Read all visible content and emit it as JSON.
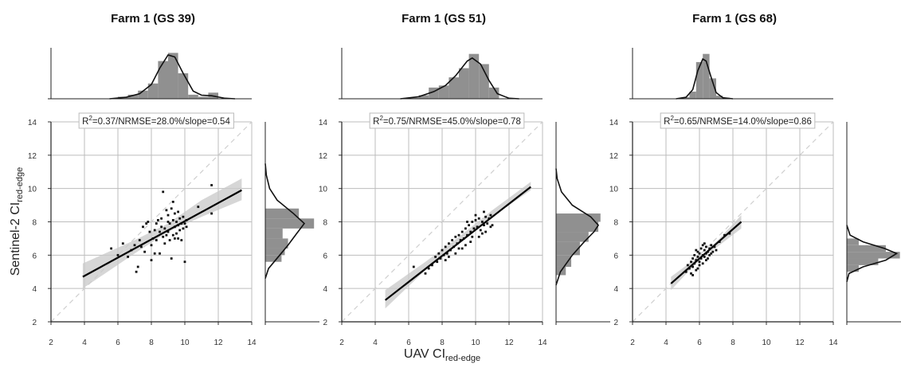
{
  "ylabel": {
    "main": "Sentinel-2 CI",
    "sub": "red-edge"
  },
  "xlabel": {
    "main": "UAV CI",
    "sub": "red-edge"
  },
  "chart_data": [
    {
      "type": "scatter",
      "title": "Farm 1 (GS 39)",
      "stat": {
        "r2_prefix": "R",
        "r2_sup": "2",
        "text": "=0.37/NRMSE=28.0%/slope=0.54"
      },
      "xlim": [
        2,
        14
      ],
      "ylim": [
        2,
        14
      ],
      "xticks": [
        2,
        4,
        6,
        8,
        10,
        12,
        14
      ],
      "yticks": [
        2,
        4,
        6,
        8,
        10,
        12,
        14
      ],
      "grid": true,
      "fit": {
        "x": [
          3.9,
          13.4
        ],
        "y": [
          4.7,
          9.9
        ]
      },
      "ci_band": {
        "x": [
          3.9,
          7,
          9,
          11,
          13.4
        ],
        "lower": [
          4.0,
          6.1,
          7.4,
          8.3,
          9.3
        ],
        "upper": [
          5.5,
          6.9,
          7.9,
          9.3,
          10.6
        ]
      },
      "points": [
        [
          5.6,
          6.4
        ],
        [
          6.0,
          6.0
        ],
        [
          6.3,
          6.7
        ],
        [
          6.6,
          5.9
        ],
        [
          6.8,
          6.3
        ],
        [
          7.0,
          6.6
        ],
        [
          7.1,
          5.0
        ],
        [
          7.2,
          5.3
        ],
        [
          7.3,
          6.9
        ],
        [
          7.4,
          6.5
        ],
        [
          7.5,
          7.7
        ],
        [
          7.6,
          6.2
        ],
        [
          7.7,
          7.9
        ],
        [
          7.8,
          8.0
        ],
        [
          7.9,
          7.4
        ],
        [
          8.0,
          5.7
        ],
        [
          8.0,
          6.6
        ],
        [
          8.1,
          7.0
        ],
        [
          8.2,
          6.1
        ],
        [
          8.2,
          7.5
        ],
        [
          8.3,
          7.9
        ],
        [
          8.4,
          8.1
        ],
        [
          8.5,
          6.1
        ],
        [
          8.5,
          7.4
        ],
        [
          8.6,
          7.7
        ],
        [
          8.6,
          8.2
        ],
        [
          8.7,
          9.8
        ],
        [
          8.8,
          6.7
        ],
        [
          8.8,
          7.6
        ],
        [
          8.9,
          8.7
        ],
        [
          9.0,
          7.4
        ],
        [
          9.0,
          8.4
        ],
        [
          9.1,
          6.9
        ],
        [
          9.1,
          7.9
        ],
        [
          9.2,
          8.8
        ],
        [
          9.2,
          5.8
        ],
        [
          9.3,
          7.2
        ],
        [
          9.3,
          8.1
        ],
        [
          9.4,
          7.7
        ],
        [
          9.4,
          8.5
        ],
        [
          9.5,
          7.3
        ],
        [
          9.5,
          8.0
        ],
        [
          9.6,
          7.8
        ],
        [
          9.6,
          8.6
        ],
        [
          9.7,
          7.5
        ],
        [
          9.7,
          8.2
        ],
        [
          9.8,
          6.9
        ],
        [
          9.8,
          7.9
        ],
        [
          9.9,
          7.6
        ],
        [
          9.9,
          8.3
        ],
        [
          10.0,
          5.6
        ],
        [
          10.0,
          7.9
        ],
        [
          10.1,
          7.7
        ],
        [
          10.1,
          8.1
        ],
        [
          9.4,
          7.0
        ],
        [
          8.3,
          6.9
        ],
        [
          9.0,
          8.0
        ],
        [
          8.7,
          7.1
        ],
        [
          10.8,
          8.9
        ],
        [
          11.6,
          8.5
        ],
        [
          11.6,
          10.2
        ],
        [
          9.3,
          9.2
        ],
        [
          8.9,
          7.2
        ],
        [
          9.6,
          7.0
        ]
      ],
      "hist_x": {
        "bins": [
          [
            6.0,
            6.6,
            0.04
          ],
          [
            6.6,
            7.2,
            0.08
          ],
          [
            7.2,
            7.8,
            0.16
          ],
          [
            7.8,
            8.4,
            0.3
          ],
          [
            8.4,
            9.0,
            0.74
          ],
          [
            9.0,
            9.6,
            0.9
          ],
          [
            9.6,
            10.2,
            0.5
          ],
          [
            10.2,
            10.8,
            0.08
          ],
          [
            10.8,
            11.4,
            0.04
          ],
          [
            11.4,
            12.0,
            0.12
          ]
        ],
        "kde": [
          [
            5.5,
            0.0
          ],
          [
            6.5,
            0.03
          ],
          [
            7.3,
            0.1
          ],
          [
            8.0,
            0.28
          ],
          [
            8.5,
            0.6
          ],
          [
            9.0,
            0.86
          ],
          [
            9.4,
            0.82
          ],
          [
            9.9,
            0.5
          ],
          [
            10.5,
            0.15
          ],
          [
            11.0,
            0.07
          ],
          [
            11.6,
            0.06
          ],
          [
            12.4,
            0.01
          ],
          [
            13.0,
            0.0
          ]
        ]
      },
      "hist_y": {
        "bins": [
          [
            5.6,
            6.0,
            0.3
          ],
          [
            6.0,
            6.4,
            0.36
          ],
          [
            6.4,
            7.0,
            0.42
          ],
          [
            7.0,
            7.6,
            0.32
          ],
          [
            7.6,
            8.2,
            0.9
          ],
          [
            8.2,
            8.8,
            0.62
          ]
        ],
        "kde": [
          [
            4.6,
            0.0
          ],
          [
            5.2,
            0.06
          ],
          [
            5.9,
            0.24
          ],
          [
            6.6,
            0.42
          ],
          [
            7.3,
            0.58
          ],
          [
            7.9,
            0.72
          ],
          [
            8.5,
            0.52
          ],
          [
            9.3,
            0.22
          ],
          [
            10.0,
            0.08
          ],
          [
            10.8,
            0.02
          ],
          [
            11.5,
            0.0
          ]
        ]
      }
    },
    {
      "type": "scatter",
      "title": "Farm 1 (GS 51)",
      "stat": {
        "r2_prefix": "R",
        "r2_sup": "2",
        "text": "=0.75/NRMSE=45.0%/slope=0.78"
      },
      "xlim": [
        2,
        14
      ],
      "ylim": [
        2,
        14
      ],
      "xticks": [
        2,
        4,
        6,
        8,
        10,
        12,
        14
      ],
      "yticks": [
        2,
        4,
        6,
        8,
        10,
        12,
        14
      ],
      "grid": true,
      "fit": {
        "x": [
          4.6,
          13.3
        ],
        "y": [
          3.3,
          10.1
        ]
      },
      "ci_band": {
        "x": [
          4.6,
          7,
          9,
          11,
          13.3
        ],
        "lower": [
          2.8,
          5.1,
          6.7,
          8.3,
          9.9
        ],
        "upper": [
          3.9,
          5.6,
          7.1,
          8.7,
          10.4
        ]
      },
      "points": [
        [
          6.3,
          5.3
        ],
        [
          7.0,
          4.9
        ],
        [
          7.2,
          5.2
        ],
        [
          7.4,
          5.4
        ],
        [
          7.6,
          5.9
        ],
        [
          7.7,
          5.6
        ],
        [
          7.8,
          6.1
        ],
        [
          7.9,
          5.8
        ],
        [
          8.0,
          6.3
        ],
        [
          8.1,
          6.0
        ],
        [
          8.2,
          5.7
        ],
        [
          8.2,
          6.5
        ],
        [
          8.3,
          6.1
        ],
        [
          8.4,
          6.7
        ],
        [
          8.5,
          6.3
        ],
        [
          8.6,
          6.9
        ],
        [
          8.7,
          6.5
        ],
        [
          8.8,
          7.1
        ],
        [
          8.9,
          6.7
        ],
        [
          9.0,
          6.4
        ],
        [
          9.0,
          7.2
        ],
        [
          9.1,
          6.9
        ],
        [
          9.2,
          7.4
        ],
        [
          9.3,
          7.0
        ],
        [
          9.4,
          7.6
        ],
        [
          9.4,
          6.6
        ],
        [
          9.5,
          7.2
        ],
        [
          9.6,
          7.8
        ],
        [
          9.7,
          7.4
        ],
        [
          9.8,
          8.0
        ],
        [
          9.8,
          7.1
        ],
        [
          9.9,
          7.6
        ],
        [
          10.0,
          8.1
        ],
        [
          10.1,
          7.7
        ],
        [
          10.2,
          8.2
        ],
        [
          10.3,
          7.5
        ],
        [
          10.4,
          8.0
        ],
        [
          10.5,
          7.8
        ],
        [
          10.6,
          8.3
        ],
        [
          10.7,
          7.9
        ],
        [
          10.8,
          8.2
        ],
        [
          10.9,
          7.7
        ],
        [
          10.6,
          7.4
        ],
        [
          10.2,
          7.1
        ],
        [
          9.7,
          6.8
        ],
        [
          9.2,
          6.4
        ],
        [
          8.8,
          6.1
        ],
        [
          8.4,
          5.9
        ],
        [
          10.0,
          8.4
        ],
        [
          10.5,
          8.6
        ],
        [
          9.5,
          8.0
        ],
        [
          10.9,
          8.4
        ],
        [
          10.4,
          7.3
        ],
        [
          11.0,
          7.8
        ]
      ],
      "hist_x": {
        "bins": [
          [
            6.0,
            6.6,
            0.02
          ],
          [
            6.6,
            7.2,
            0.07
          ],
          [
            7.2,
            7.8,
            0.22
          ],
          [
            7.8,
            8.4,
            0.26
          ],
          [
            8.4,
            9.0,
            0.42
          ],
          [
            9.0,
            9.6,
            0.6
          ],
          [
            9.6,
            10.2,
            0.88
          ],
          [
            10.2,
            10.8,
            0.68
          ],
          [
            10.8,
            11.4,
            0.22
          ]
        ],
        "kde": [
          [
            5.5,
            0.0
          ],
          [
            6.6,
            0.04
          ],
          [
            7.5,
            0.14
          ],
          [
            8.2,
            0.26
          ],
          [
            8.8,
            0.45
          ],
          [
            9.5,
            0.74
          ],
          [
            9.8,
            0.8
          ],
          [
            10.3,
            0.68
          ],
          [
            10.8,
            0.36
          ],
          [
            11.3,
            0.1
          ],
          [
            12.0,
            0.01
          ],
          [
            12.6,
            0.0
          ]
        ]
      },
      "hist_y": {
        "bins": [
          [
            4.8,
            5.3,
            0.18
          ],
          [
            5.3,
            6.0,
            0.28
          ],
          [
            6.0,
            6.8,
            0.44
          ],
          [
            6.8,
            7.4,
            0.6
          ],
          [
            7.4,
            8.0,
            0.78
          ],
          [
            8.0,
            8.5,
            0.82
          ]
        ],
        "kde": [
          [
            4.2,
            0.0
          ],
          [
            5.0,
            0.08
          ],
          [
            6.0,
            0.3
          ],
          [
            6.8,
            0.52
          ],
          [
            7.4,
            0.7
          ],
          [
            7.8,
            0.78
          ],
          [
            8.3,
            0.64
          ],
          [
            9.0,
            0.3
          ],
          [
            9.8,
            0.1
          ],
          [
            10.6,
            0.02
          ],
          [
            11.2,
            0.0
          ]
        ]
      }
    },
    {
      "type": "scatter",
      "title": "Farm 1 (GS 68)",
      "stat": {
        "r2_prefix": "R",
        "r2_sup": "2",
        "text": "=0.65/NRMSE=14.0%/slope=0.86"
      },
      "xlim": [
        2,
        14
      ],
      "ylim": [
        2,
        14
      ],
      "xticks": [
        2,
        4,
        6,
        8,
        10,
        12,
        14
      ],
      "yticks": [
        2,
        4,
        6,
        8,
        10,
        12,
        14
      ],
      "grid": true,
      "fit": {
        "x": [
          4.3,
          8.5
        ],
        "y": [
          4.3,
          8.0
        ]
      },
      "ci_band": {
        "x": [
          4.3,
          5.5,
          6.3,
          7.2,
          8.5
        ],
        "lower": [
          3.9,
          5.2,
          5.95,
          6.6,
          7.6
        ],
        "upper": [
          4.7,
          5.6,
          6.15,
          7.0,
          8.4
        ]
      },
      "points": [
        [
          5.2,
          5.0
        ],
        [
          5.3,
          5.4
        ],
        [
          5.4,
          5.2
        ],
        [
          5.5,
          5.6
        ],
        [
          5.5,
          4.9
        ],
        [
          5.6,
          5.8
        ],
        [
          5.6,
          5.3
        ],
        [
          5.7,
          5.5
        ],
        [
          5.7,
          6.0
        ],
        [
          5.8,
          5.7
        ],
        [
          5.8,
          5.1
        ],
        [
          5.9,
          5.9
        ],
        [
          5.9,
          6.2
        ],
        [
          6.0,
          5.6
        ],
        [
          6.0,
          6.1
        ],
        [
          6.1,
          5.8
        ],
        [
          6.1,
          6.4
        ],
        [
          6.2,
          6.0
        ],
        [
          6.2,
          5.5
        ],
        [
          6.3,
          6.3
        ],
        [
          6.3,
          5.9
        ],
        [
          6.4,
          6.1
        ],
        [
          6.4,
          6.5
        ],
        [
          6.5,
          6.2
        ],
        [
          6.5,
          5.8
        ],
        [
          6.6,
          6.4
        ],
        [
          6.6,
          6.0
        ],
        [
          6.7,
          6.6
        ],
        [
          6.8,
          6.2
        ],
        [
          6.9,
          6.5
        ],
        [
          7.0,
          6.3
        ],
        [
          7.2,
          6.8
        ],
        [
          7.5,
          7.2
        ],
        [
          6.0,
          5.4
        ],
        [
          5.9,
          5.2
        ],
        [
          6.2,
          6.6
        ],
        [
          6.4,
          5.7
        ],
        [
          6.7,
          6.1
        ],
        [
          5.8,
          6.3
        ],
        [
          6.3,
          6.7
        ],
        [
          7.8,
          7.3
        ],
        [
          5.6,
          4.8
        ]
      ],
      "hist_x": {
        "bins": [
          [
            5.0,
            5.4,
            0.03
          ],
          [
            5.4,
            5.8,
            0.14
          ],
          [
            5.8,
            6.2,
            0.72
          ],
          [
            6.2,
            6.6,
            0.88
          ],
          [
            6.6,
            7.0,
            0.4
          ],
          [
            7.0,
            7.4,
            0.06
          ],
          [
            7.4,
            7.8,
            0.02
          ]
        ],
        "kde": [
          [
            4.6,
            0.0
          ],
          [
            5.2,
            0.03
          ],
          [
            5.6,
            0.18
          ],
          [
            5.9,
            0.55
          ],
          [
            6.2,
            0.78
          ],
          [
            6.4,
            0.74
          ],
          [
            6.7,
            0.42
          ],
          [
            7.0,
            0.12
          ],
          [
            7.4,
            0.02
          ],
          [
            8.0,
            0.0
          ]
        ]
      },
      "hist_y": {
        "bins": [
          [
            5.0,
            5.4,
            0.22
          ],
          [
            5.4,
            5.8,
            0.58
          ],
          [
            5.8,
            6.2,
            0.98
          ],
          [
            6.2,
            6.6,
            0.72
          ],
          [
            6.6,
            7.0,
            0.22
          ]
        ],
        "kde": [
          [
            4.4,
            0.0
          ],
          [
            4.9,
            0.04
          ],
          [
            5.3,
            0.3
          ],
          [
            5.7,
            0.72
          ],
          [
            6.1,
            0.92
          ],
          [
            6.4,
            0.7
          ],
          [
            6.8,
            0.3
          ],
          [
            7.2,
            0.06
          ],
          [
            7.8,
            0.0
          ]
        ]
      }
    }
  ]
}
